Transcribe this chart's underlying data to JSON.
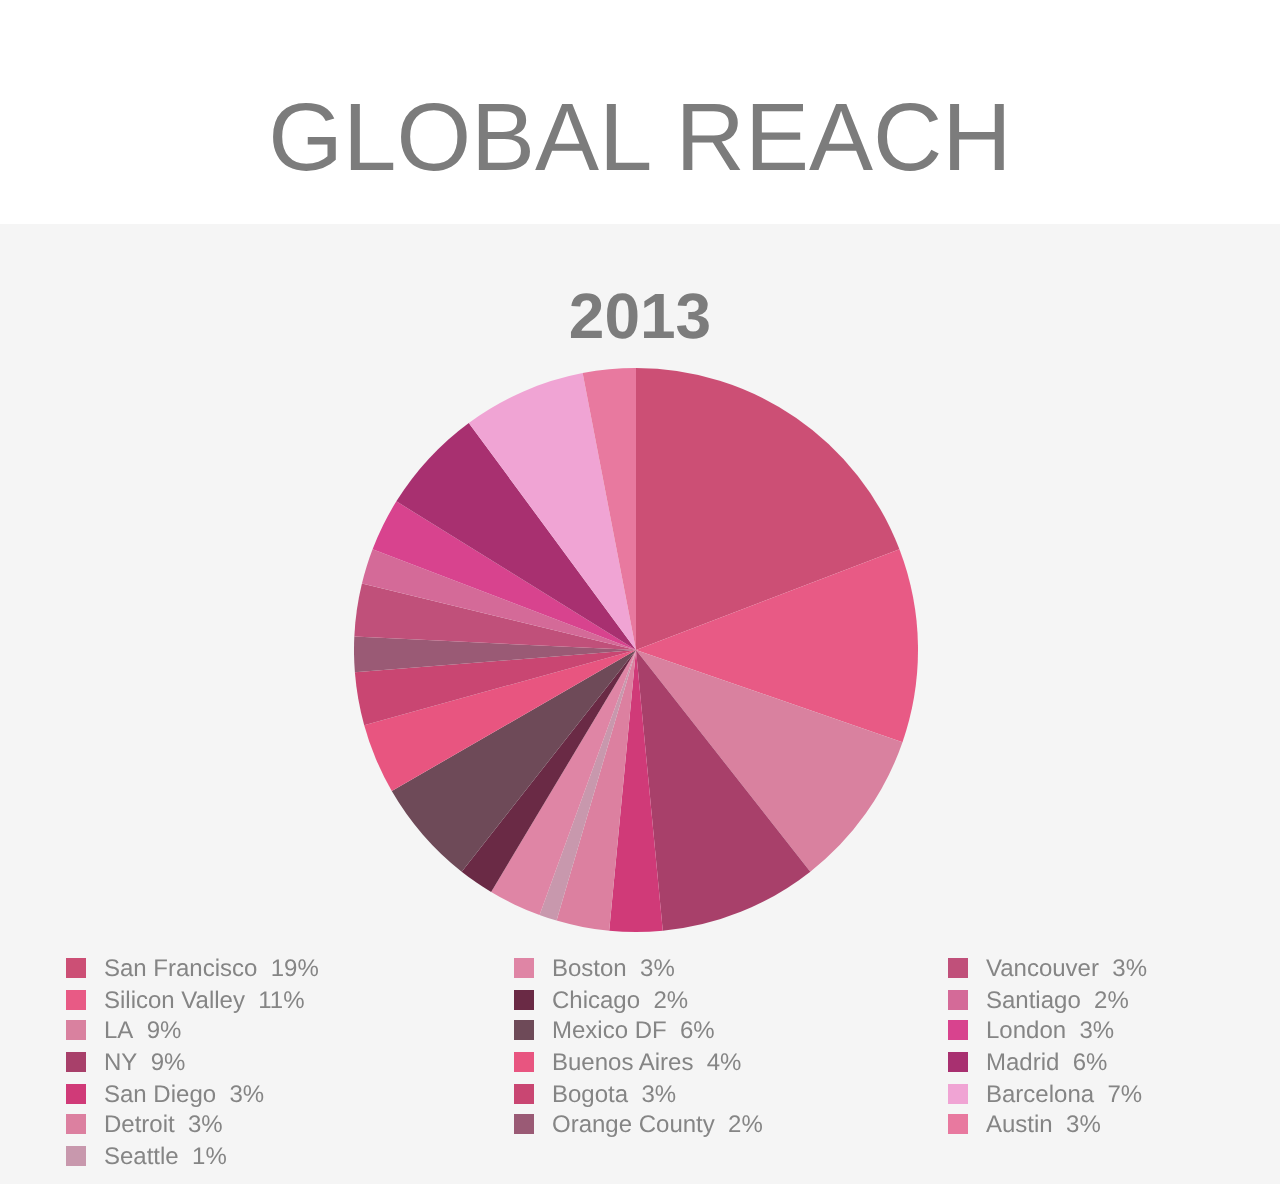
{
  "chart_data": {
    "type": "pie",
    "title": "GLOBAL REACH",
    "subtitle": "2013",
    "categories": [
      "San Francisco",
      "Silicon Valley",
      "LA",
      "NY",
      "San Diego",
      "Detroit",
      "Seattle",
      "Boston",
      "Chicago",
      "Mexico DF",
      "Buenos Aires",
      "Bogota",
      "Orange County",
      "Vancouver",
      "Santiago",
      "London",
      "Madrid",
      "Barcelona",
      "Austin"
    ],
    "values": [
      19,
      11,
      9,
      9,
      3,
      3,
      1,
      3,
      2,
      6,
      4,
      3,
      2,
      3,
      2,
      3,
      6,
      7,
      3
    ],
    "value_labels": [
      "19%",
      "11%",
      "9%",
      "9%",
      "3%",
      "3%",
      "1%",
      "3%",
      "2%",
      "6%",
      "4%",
      "3%",
      "2%",
      "3%",
      "2%",
      "3%",
      "6%",
      "7%",
      "3%"
    ],
    "colors": [
      "#cc4f75",
      "#e85a85",
      "#d9819f",
      "#a8406a",
      "#d03a78",
      "#dc80a0",
      "#c898ad",
      "#df85a5",
      "#6a2a45",
      "#6e4a58",
      "#e85580",
      "#c94672",
      "#9a5a75",
      "#c0507a",
      "#d46a98",
      "#d8438e",
      "#a83070",
      "#f0a4d4",
      "#e8799f"
    ],
    "legend": "bottom"
  }
}
